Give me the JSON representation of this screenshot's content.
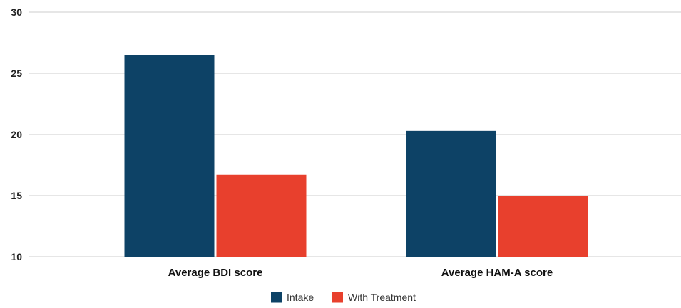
{
  "chart_data": {
    "type": "bar",
    "categories": [
      "Average BDI score",
      "Average HAM-A score"
    ],
    "series": [
      {
        "name": "Intake",
        "values": [
          26.5,
          20.3
        ],
        "color": "#0d4266"
      },
      {
        "name": "With Treatment",
        "values": [
          16.7,
          15.0
        ],
        "color": "#e8402d"
      }
    ],
    "ylim": [
      10,
      30
    ],
    "yticks": [
      10,
      15,
      20,
      25,
      30
    ],
    "grid": true,
    "legend": "bottom-center",
    "title": "",
    "xlabel": "",
    "ylabel": ""
  },
  "colors": {
    "grid": "#cccccc",
    "axis_text": "#222222"
  }
}
